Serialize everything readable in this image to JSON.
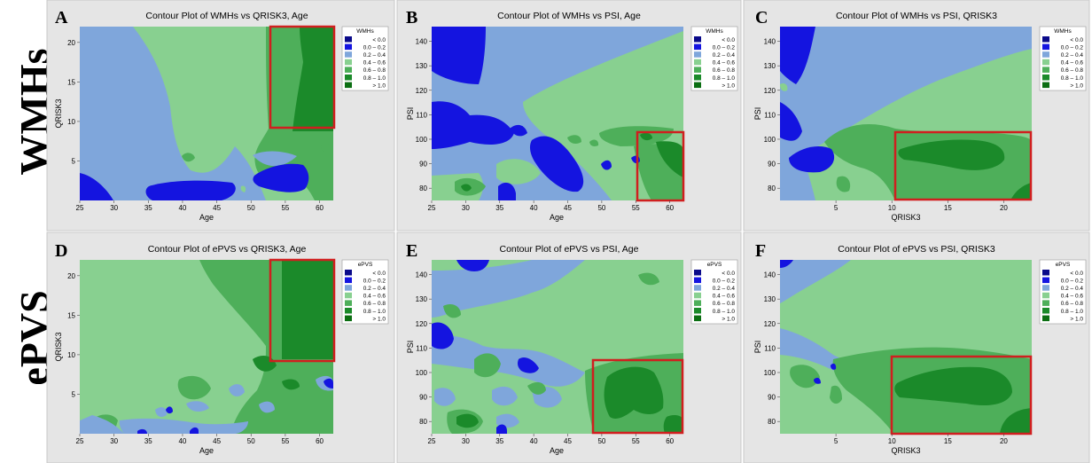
{
  "row_labels": [
    "WMHs",
    "ePVS"
  ],
  "colors": {
    "lt0": "#0a0a8a",
    "c00_02": "#1414e0",
    "c02_04": "#7fa6db",
    "c04_06": "#88d090",
    "c06_08": "#4eaf5a",
    "c08_10": "#1b8a2a",
    "gt10": "#0b6e12",
    "highlight": "#d01f1f"
  },
  "legend_items": [
    "<  0.0",
    "0.0  –  0.2",
    "0.2  –  0.4",
    "0.4  –  0.6",
    "0.6  –  0.8",
    "0.8  –  1.0",
    ">  1.0"
  ],
  "panels": [
    {
      "letter": "A",
      "title": "Contour Plot of WMHs vs QRISK3, Age",
      "xlabel": "Age",
      "ylabel": "QRISK3",
      "legend_title": "WMHs"
    },
    {
      "letter": "B",
      "title": "Contour Plot of WMHs vs PSI, Age",
      "xlabel": "Age",
      "ylabel": "PSI",
      "legend_title": "WMHs"
    },
    {
      "letter": "C",
      "title": "Contour Plot of WMHs vs PSI, QRISK3",
      "xlabel": "QRISK3",
      "ylabel": "PSI",
      "legend_title": "WMHs"
    },
    {
      "letter": "D",
      "title": "Contour Plot of ePVS vs QRISK3, Age",
      "xlabel": "Age",
      "ylabel": "QRISK3",
      "legend_title": "ePVS"
    },
    {
      "letter": "E",
      "title": "Contour Plot of ePVS vs PSI, Age",
      "xlabel": "Age",
      "ylabel": "PSI",
      "legend_title": "ePVS"
    },
    {
      "letter": "F",
      "title": "Contour Plot of ePVS vs PSI, QRISK3",
      "xlabel": "QRISK3",
      "ylabel": "PSI",
      "legend_title": "ePVS"
    }
  ],
  "chart_data": [
    {
      "type": "heatmap",
      "title": "Contour Plot of WMHs vs QRISK3, Age",
      "xlabel": "Age",
      "ylabel": "QRISK3",
      "xlim": [
        25,
        62
      ],
      "ylim": [
        0,
        22
      ],
      "xticks": [
        25,
        30,
        35,
        40,
        45,
        50,
        55,
        60
      ],
      "yticks": [
        5,
        10,
        15,
        20
      ],
      "legend_title": "WMHs",
      "legend_placement": "right",
      "levels": [
        "<  0.0",
        "0.0  –  0.2",
        "0.2  –  0.4",
        "0.4  –  0.6",
        "0.6  –  0.8",
        "0.8  –  1.0",
        ">  1.0"
      ],
      "highlight_region": {
        "x": [
          52.5,
          62
        ],
        "y": [
          9.5,
          22
        ]
      }
    },
    {
      "type": "heatmap",
      "title": "Contour Plot of WMHs vs PSI, Age",
      "xlabel": "Age",
      "ylabel": "PSI",
      "xlim": [
        25,
        62
      ],
      "ylim": [
        75,
        146
      ],
      "xticks": [
        25,
        30,
        35,
        40,
        45,
        50,
        55,
        60
      ],
      "yticks": [
        80,
        90,
        100,
        110,
        120,
        130,
        140
      ],
      "legend_title": "WMHs",
      "legend_placement": "right",
      "levels": [
        "<  0.0",
        "0.0  –  0.2",
        "0.2  –  0.4",
        "0.4  –  0.6",
        "0.6  –  0.8",
        "0.8  –  1.0",
        ">  1.0"
      ],
      "highlight_region": {
        "x": [
          55.5,
          62
        ],
        "y": [
          75,
          103
        ]
      }
    },
    {
      "type": "heatmap",
      "title": "Contour Plot of WMHs vs PSI, QRISK3",
      "xlabel": "QRISK3",
      "ylabel": "PSI",
      "xlim": [
        0,
        22.5
      ],
      "ylim": [
        75,
        146
      ],
      "xticks": [
        5,
        10,
        15,
        20
      ],
      "yticks": [
        80,
        90,
        100,
        110,
        120,
        130,
        140
      ],
      "legend_title": "WMHs",
      "legend_placement": "right",
      "levels": [
        "<  0.0",
        "0.0  –  0.2",
        "0.2  –  0.4",
        "0.4  –  0.6",
        "0.6  –  0.8",
        "0.8  –  1.0",
        ">  1.0"
      ],
      "highlight_region": {
        "x": [
          10.3,
          22.5
        ],
        "y": [
          75,
          103
        ]
      }
    },
    {
      "type": "heatmap",
      "title": "Contour Plot of ePVS vs QRISK3, Age",
      "xlabel": "Age",
      "ylabel": "QRISK3",
      "xlim": [
        25,
        62
      ],
      "ylim": [
        0,
        22
      ],
      "xticks": [
        25,
        30,
        35,
        40,
        45,
        50,
        55,
        60
      ],
      "yticks": [
        5,
        10,
        15,
        20
      ],
      "legend_title": "ePVS",
      "legend_placement": "right",
      "levels": [
        "<  0.0",
        "0.0  –  0.2",
        "0.2  –  0.4",
        "0.4  –  0.6",
        "0.6  –  0.8",
        "0.8  –  1.0",
        ">  1.0"
      ],
      "highlight_region": {
        "x": [
          52.5,
          62
        ],
        "y": [
          9,
          22
        ]
      }
    },
    {
      "type": "heatmap",
      "title": "Contour Plot of ePVS vs PSI, Age",
      "xlabel": "Age",
      "ylabel": "PSI",
      "xlim": [
        25,
        62
      ],
      "ylim": [
        75,
        146
      ],
      "xticks": [
        25,
        30,
        35,
        40,
        45,
        50,
        55,
        60
      ],
      "yticks": [
        80,
        90,
        100,
        110,
        120,
        130,
        140
      ],
      "legend_title": "ePVS",
      "legend_placement": "right",
      "levels": [
        "<  0.0",
        "0.0  –  0.2",
        "0.2  –  0.4",
        "0.4  –  0.6",
        "0.6  –  0.8",
        "0.8  –  1.0",
        ">  1.0"
      ],
      "highlight_region": {
        "x": [
          49,
          62
        ],
        "y": [
          75,
          105
        ]
      }
    },
    {
      "type": "heatmap",
      "title": "Contour Plot of ePVS vs PSI, QRISK3",
      "xlabel": "QRISK3",
      "ylabel": "PSI",
      "xlim": [
        0,
        22.5
      ],
      "ylim": [
        75,
        146
      ],
      "xticks": [
        5,
        10,
        15,
        20
      ],
      "yticks": [
        80,
        90,
        100,
        110,
        120,
        130,
        140
      ],
      "legend_title": "ePVS",
      "legend_placement": "right",
      "levels": [
        "<  0.0",
        "0.0  –  0.2",
        "0.2  –  0.4",
        "0.4  –  0.6",
        "0.6  –  0.8",
        "0.8  –  1.0",
        ">  1.0"
      ],
      "highlight_region": {
        "x": [
          10,
          22.5
        ],
        "y": [
          75,
          106
        ]
      }
    }
  ]
}
